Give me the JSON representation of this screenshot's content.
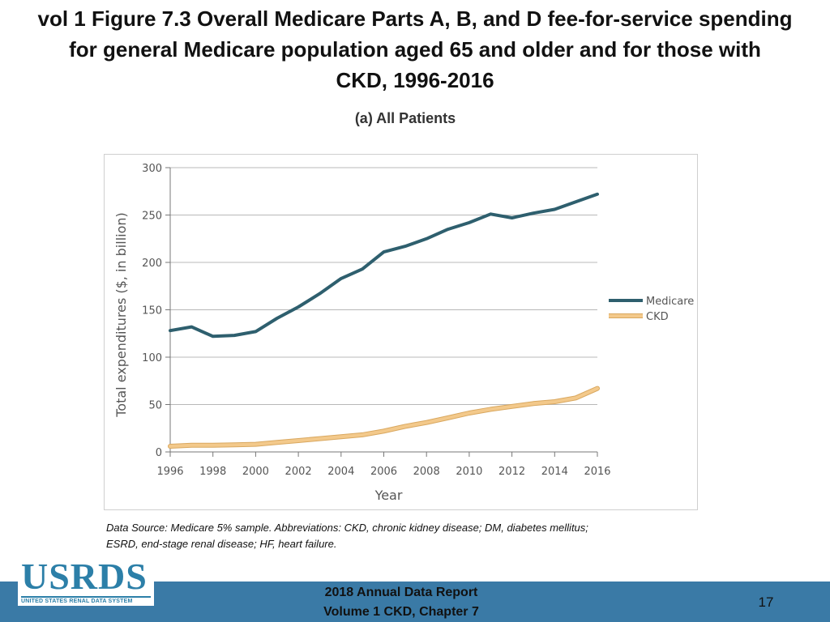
{
  "slide": {
    "title_lines": [
      "vol 1 Figure 7.3 Overall Medicare Parts A, B, and D fee-for-service spending",
      "for general Medicare population aged 65 and older and for those with",
      "CKD, 1996-2016"
    ],
    "caption_lines": [
      "Data Source: Medicare 5% sample. Abbreviations: CKD, chronic kidney disease; DM, diabetes mellitus;",
      "ESRD, end-stage renal disease; HF, heart failure."
    ],
    "footer_lines": [
      "2018 Annual Data Report",
      "Volume 1 CKD, Chapter 7"
    ],
    "page_number": "17",
    "logo": {
      "word": "USRDS",
      "subtitle": "UNITED STATES RENAL DATA SYSTEM"
    }
  },
  "colors": {
    "medicare": "#2e5f6e",
    "ckd": "#f3c98b",
    "ckd_edge": "#d9a860",
    "grid": "#b8b8b8",
    "footer": "#3a7aa6"
  },
  "chart_data": {
    "type": "line",
    "title": "(a) All Patients",
    "xlabel": "Year",
    "ylabel": "Total expenditures ($, in billion)",
    "ylim": [
      0,
      300
    ],
    "yticks": [
      0,
      50,
      100,
      150,
      200,
      250,
      300
    ],
    "xticks": [
      1996,
      1998,
      2000,
      2002,
      2004,
      2006,
      2008,
      2010,
      2012,
      2014,
      2016
    ],
    "xlim": [
      1996,
      2016
    ],
    "grid": true,
    "legend_position": "right",
    "x": [
      1996,
      1997,
      1998,
      1999,
      2000,
      2001,
      2002,
      2003,
      2004,
      2005,
      2006,
      2007,
      2008,
      2009,
      2010,
      2011,
      2012,
      2013,
      2014,
      2015,
      2016
    ],
    "series": [
      {
        "name": "Medicare",
        "color": "#2e5f6e",
        "values": [
          128,
          132,
          122,
          123,
          127,
          141,
          153,
          167,
          183,
          193,
          211,
          217,
          225,
          235,
          242,
          251,
          247,
          252,
          256,
          264,
          272
        ]
      },
      {
        "name": "CKD",
        "color": "#f3c98b",
        "values": [
          6,
          7,
          7,
          7.5,
          8,
          10,
          12,
          14,
          16,
          18,
          22,
          27,
          31,
          36,
          41,
          45,
          48,
          51,
          53,
          57,
          67
        ]
      }
    ]
  }
}
